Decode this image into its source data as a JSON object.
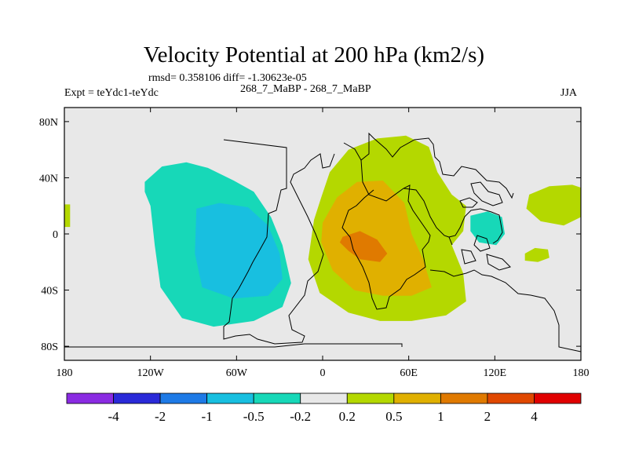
{
  "chart_data": {
    "type": "contour-map",
    "title": "Velocity Potential at 200 hPa (km2/s)",
    "stats_text": "rmsd= 0.358106 diff= -1.30623e-05",
    "left_label": "Expt = teYdc1-teYdc",
    "center_label": "268_7_MaBP - 268_7_MaBP",
    "right_label": "JJA",
    "lon_range": [
      -180,
      180
    ],
    "lat_range": [
      -90,
      90
    ],
    "x_ticks": [
      {
        "value": -180,
        "label": "180"
      },
      {
        "value": -120,
        "label": "120W"
      },
      {
        "value": -60,
        "label": "60W"
      },
      {
        "value": 0,
        "label": "0"
      },
      {
        "value": 60,
        "label": "60E"
      },
      {
        "value": 120,
        "label": "120E"
      },
      {
        "value": 180,
        "label": "180"
      }
    ],
    "y_ticks": [
      {
        "value": 80,
        "label": "80N"
      },
      {
        "value": 40,
        "label": "40N"
      },
      {
        "value": 0,
        "label": "0"
      },
      {
        "value": -40,
        "label": "40S"
      },
      {
        "value": -80,
        "label": "80S"
      }
    ],
    "colorbar": {
      "colors": [
        "#8a2be2",
        "#2a2ad8",
        "#1e7ae6",
        "#18bfe0",
        "#17d8b8",
        "#e8e8e8",
        "#b4d800",
        "#e0b000",
        "#e07a00",
        "#e04800",
        "#e00000"
      ],
      "labels": [
        "-4",
        "-2",
        "-1",
        "-0.5",
        "-0.2",
        "0.2",
        "0.5",
        "1",
        "2",
        "4"
      ]
    },
    "regions": [
      {
        "name": "wpac-small",
        "level": 0.2,
        "color": "#b4d800",
        "points": [
          [
            -180,
            21
          ],
          [
            -176,
            21
          ],
          [
            -176,
            5
          ],
          [
            -180,
            5
          ]
        ]
      },
      {
        "name": "east-pac-outer",
        "level": -0.2,
        "color": "#17d8b8",
        "points": [
          [
            -124,
            37
          ],
          [
            -112,
            48
          ],
          [
            -95,
            51
          ],
          [
            -80,
            47
          ],
          [
            -62,
            38
          ],
          [
            -48,
            30
          ],
          [
            -36,
            12
          ],
          [
            -28,
            -8
          ],
          [
            -22,
            -35
          ],
          [
            -28,
            -52
          ],
          [
            -48,
            -62
          ],
          [
            -76,
            -66
          ],
          [
            -98,
            -60
          ],
          [
            -113,
            -38
          ],
          [
            -117,
            -8
          ],
          [
            -120,
            20
          ],
          [
            -124,
            30
          ]
        ]
      },
      {
        "name": "east-pac-inner",
        "level": -0.5,
        "color": "#18bfe0",
        "points": [
          [
            -88,
            18
          ],
          [
            -72,
            22
          ],
          [
            -52,
            19
          ],
          [
            -38,
            6
          ],
          [
            -30,
            -14
          ],
          [
            -28,
            -32
          ],
          [
            -38,
            -44
          ],
          [
            -62,
            -46
          ],
          [
            -84,
            -38
          ],
          [
            -89,
            -14
          ]
        ]
      },
      {
        "name": "africa-outer",
        "level": 0.2,
        "color": "#b4d800",
        "points": [
          [
            -1,
            26
          ],
          [
            5,
            44
          ],
          [
            18,
            60
          ],
          [
            38,
            68
          ],
          [
            58,
            70
          ],
          [
            74,
            62
          ],
          [
            80,
            44
          ],
          [
            90,
            28
          ],
          [
            100,
            20
          ],
          [
            98,
            2
          ],
          [
            90,
            -8
          ],
          [
            98,
            -28
          ],
          [
            100,
            -48
          ],
          [
            86,
            -58
          ],
          [
            62,
            -62
          ],
          [
            40,
            -62
          ],
          [
            18,
            -56
          ],
          [
            -2,
            -42
          ],
          [
            -10,
            -18
          ],
          [
            -6,
            10
          ]
        ]
      },
      {
        "name": "africa-mid",
        "level": 0.5,
        "color": "#e0b000",
        "points": [
          [
            0,
            8
          ],
          [
            10,
            26
          ],
          [
            24,
            37
          ],
          [
            42,
            38
          ],
          [
            57,
            22
          ],
          [
            62,
            0
          ],
          [
            70,
            -18
          ],
          [
            76,
            -38
          ],
          [
            62,
            -44
          ],
          [
            42,
            -44
          ],
          [
            22,
            -40
          ],
          [
            7,
            -26
          ],
          [
            -1,
            -6
          ]
        ]
      },
      {
        "name": "africa-core",
        "level": 1,
        "color": "#e07a00",
        "points": [
          [
            14,
            -2
          ],
          [
            26,
            2
          ],
          [
            38,
            -4
          ],
          [
            45,
            -14
          ],
          [
            40,
            -20
          ],
          [
            26,
            -18
          ],
          [
            18,
            -12
          ],
          [
            12,
            -6
          ]
        ]
      },
      {
        "name": "wpac-teal",
        "level": -0.2,
        "color": "#17d8b8",
        "points": [
          [
            103,
            13
          ],
          [
            115,
            16
          ],
          [
            125,
            12
          ],
          [
            127,
            0
          ],
          [
            121,
            -8
          ],
          [
            109,
            -6
          ],
          [
            103,
            2
          ]
        ]
      },
      {
        "name": "dateline-green",
        "level": 0.2,
        "color": "#b4d800",
        "points": [
          [
            144,
            28
          ],
          [
            158,
            34
          ],
          [
            174,
            35
          ],
          [
            180,
            33
          ],
          [
            180,
            12
          ],
          [
            168,
            6
          ],
          [
            152,
            9
          ],
          [
            142,
            18
          ]
        ]
      },
      {
        "name": "spac-green",
        "level": 0.2,
        "color": "#b4d800",
        "points": [
          [
            141,
            -14
          ],
          [
            148,
            -10
          ],
          [
            157,
            -11
          ],
          [
            158,
            -17
          ],
          [
            150,
            -20
          ],
          [
            141,
            -19
          ]
        ]
      }
    ]
  }
}
